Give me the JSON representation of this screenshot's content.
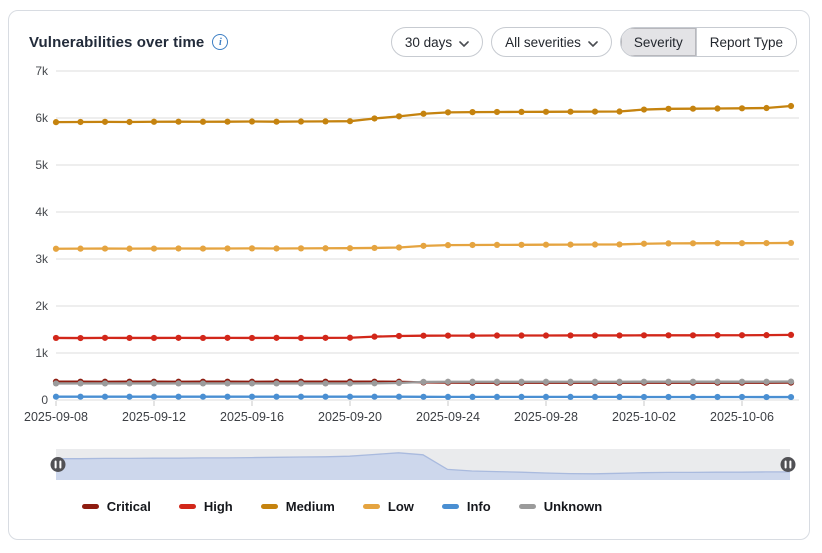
{
  "header": {
    "title": "Vulnerabilities over time",
    "info_glyph": "i",
    "time_range": {
      "value": "30 days"
    },
    "severity_filter": {
      "value": "All severities"
    },
    "view_toggle": {
      "options": [
        "Severity",
        "Report Type"
      ],
      "selected": "Severity"
    }
  },
  "chart_data": {
    "type": "line",
    "title": "Vulnerabilities over time",
    "xlabel": "",
    "ylabel": "",
    "ylim": [
      0,
      7000
    ],
    "y_tick_labels": [
      "0",
      "1k",
      "2k",
      "3k",
      "4k",
      "5k",
      "6k",
      "7k"
    ],
    "grid": true,
    "legend_position": "bottom",
    "x": [
      "2025-09-08",
      "2025-09-09",
      "2025-09-10",
      "2025-09-11",
      "2025-09-12",
      "2025-09-13",
      "2025-09-14",
      "2025-09-15",
      "2025-09-16",
      "2025-09-17",
      "2025-09-18",
      "2025-09-19",
      "2025-09-20",
      "2025-09-21",
      "2025-09-22",
      "2025-09-23",
      "2025-09-24",
      "2025-09-25",
      "2025-09-26",
      "2025-09-27",
      "2025-09-28",
      "2025-09-29",
      "2025-09-30",
      "2025-10-01",
      "2025-10-02",
      "2025-10-03",
      "2025-10-04",
      "2025-10-05",
      "2025-10-06",
      "2025-10-07",
      "2025-10-08"
    ],
    "x_tick_every": 4,
    "series": [
      {
        "name": "Critical",
        "color": "#8e1c10",
        "values": [
          390,
          390,
          388,
          390,
          390,
          388,
          390,
          390,
          388,
          390,
          390,
          390,
          390,
          390,
          388,
          375,
          370,
          368,
          368,
          368,
          368,
          368,
          368,
          368,
          368,
          368,
          368,
          368,
          368,
          368,
          370
        ]
      },
      {
        "name": "High",
        "color": "#d2271a",
        "values": [
          1320,
          1318,
          1322,
          1320,
          1320,
          1322,
          1320,
          1322,
          1320,
          1322,
          1320,
          1322,
          1325,
          1348,
          1362,
          1368,
          1370,
          1370,
          1372,
          1372,
          1372,
          1374,
          1374,
          1374,
          1376,
          1376,
          1376,
          1378,
          1378,
          1380,
          1385
        ]
      },
      {
        "name": "Medium",
        "color": "#c5830f",
        "values": [
          5912,
          5915,
          5918,
          5915,
          5920,
          5922,
          5920,
          5922,
          5925,
          5922,
          5925,
          5928,
          5932,
          5990,
          6035,
          6090,
          6120,
          6125,
          6128,
          6130,
          6132,
          6134,
          6136,
          6138,
          6180,
          6195,
          6198,
          6202,
          6206,
          6212,
          6255
        ]
      },
      {
        "name": "Low",
        "color": "#e5a440",
        "values": [
          3218,
          3220,
          3222,
          3220,
          3222,
          3224,
          3222,
          3224,
          3226,
          3224,
          3226,
          3228,
          3230,
          3235,
          3245,
          3280,
          3295,
          3298,
          3300,
          3302,
          3304,
          3306,
          3308,
          3310,
          3325,
          3332,
          3334,
          3336,
          3336,
          3338,
          3342
        ]
      },
      {
        "name": "Info",
        "color": "#4a8fd2",
        "values": [
          70,
          70,
          70,
          70,
          70,
          70,
          70,
          70,
          70,
          70,
          70,
          70,
          70,
          70,
          70,
          68,
          66,
          66,
          66,
          66,
          66,
          66,
          66,
          66,
          64,
          64,
          64,
          64,
          64,
          62,
          62
        ]
      },
      {
        "name": "Unknown",
        "color": "#9b9b9b",
        "values": [
          352,
          352,
          352,
          352,
          352,
          352,
          352,
          352,
          352,
          352,
          352,
          352,
          352,
          355,
          362,
          385,
          388,
          388,
          388,
          388,
          388,
          388,
          388,
          388,
          390,
          390,
          390,
          390,
          390,
          390,
          392
        ]
      }
    ],
    "navigator": {
      "values": [
        0.76,
        0.76,
        0.77,
        0.77,
        0.78,
        0.78,
        0.79,
        0.79,
        0.8,
        0.81,
        0.82,
        0.83,
        0.85,
        0.91,
        0.97,
        0.9,
        0.38,
        0.32,
        0.3,
        0.28,
        0.25,
        0.23,
        0.22,
        0.24,
        0.26,
        0.27,
        0.27,
        0.28,
        0.28,
        0.29,
        0.29
      ],
      "fill": "#cdd7ec",
      "line": "#a9bade",
      "track": "#eaebed",
      "handle": "#515155"
    },
    "colors": {
      "grid": "#dedede",
      "tick": "#c9c9c9"
    }
  }
}
